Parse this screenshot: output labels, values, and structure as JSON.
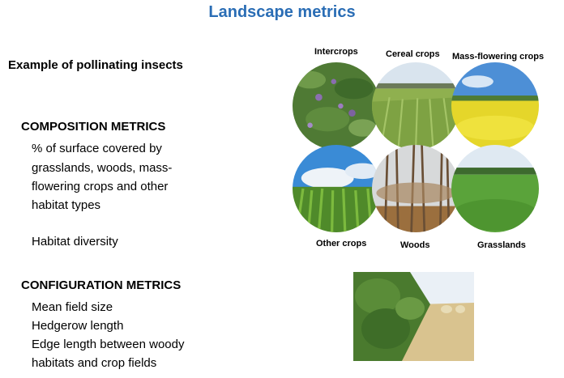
{
  "slide": {
    "title": "Landscape metrics",
    "subtitle": "Example of pollinating insects"
  },
  "composition": {
    "heading": "COMPOSITION METRICS",
    "lines": [
      "% of surface covered by",
      "grasslands, woods, mass-",
      "flowering crops and other",
      "habitat types"
    ],
    "extra": "Habitat diversity"
  },
  "configuration": {
    "heading": "CONFIGURATION METRICS",
    "lines": [
      "Mean field size",
      "Hedgerow length",
      "Edge length between woody",
      "habitats and crop fields"
    ]
  },
  "habitats": {
    "intercrops": "Intercrops",
    "cereal": "Cereal crops",
    "massflowering": "Mass-flowering crops",
    "othercrops": "Other crops",
    "woods": "Woods",
    "grasslands": "Grasslands"
  },
  "colors": {
    "title": "#2a6db5"
  }
}
